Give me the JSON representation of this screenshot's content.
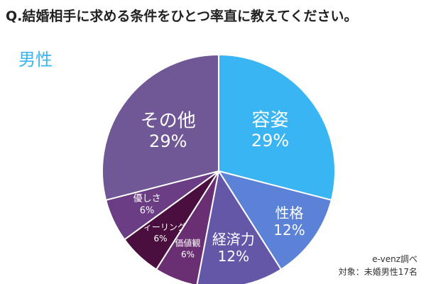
{
  "title": "Q.結婚相手に求める条件をひとつ率直に教えてください。",
  "subtitle": "男性",
  "source": {
    "line1": "e-venz調べ",
    "line2": "対象：未婚男性17名"
  },
  "chart_data": {
    "type": "pie",
    "title": "Q.結婚相手に求める条件をひとつ率直に教えてください。",
    "subtitle": "男性",
    "categories": [
      "容姿",
      "性格",
      "経済力",
      "価値観",
      "フィーリング",
      "優しさ",
      "その他"
    ],
    "values": [
      29,
      12,
      12,
      6,
      6,
      6,
      29
    ],
    "value_labels": [
      "29%",
      "12%",
      "12%",
      "6%",
      "6%",
      "6%",
      "29%"
    ],
    "colors": [
      "#38b5f2",
      "#5b82d6",
      "#6557a8",
      "#6a2f73",
      "#4a0f3f",
      "#6b3d84",
      "#6f5895"
    ],
    "start": "12 o'clock, clockwise",
    "legend": "none, labels on slices"
  }
}
